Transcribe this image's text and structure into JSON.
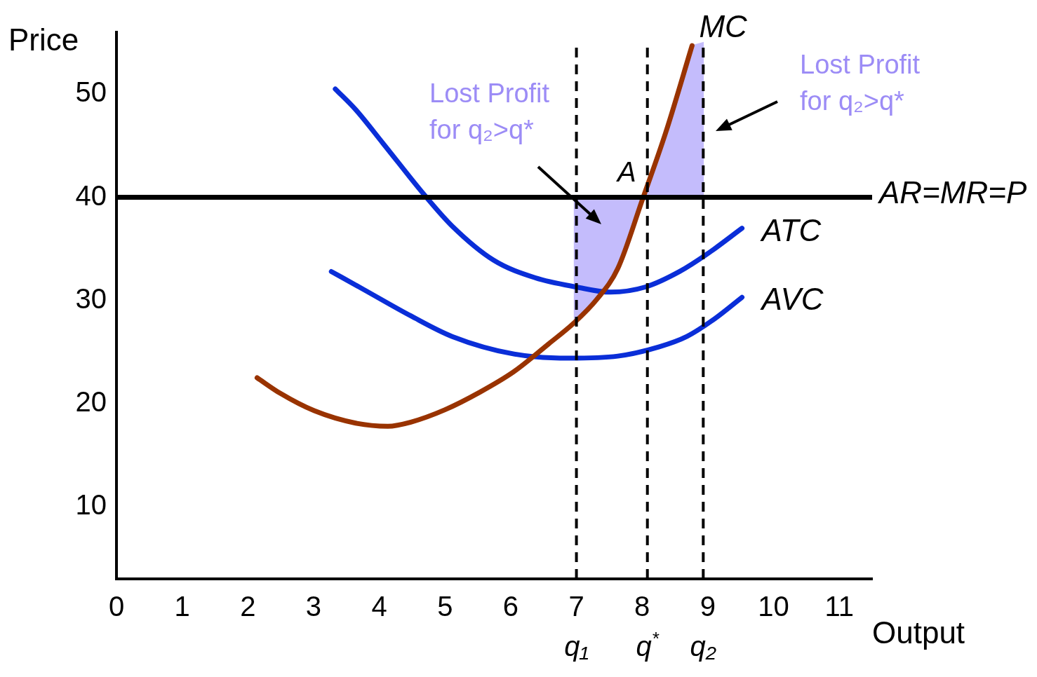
{
  "chart_data": {
    "type": "line",
    "xlabel": "Output",
    "ylabel": "Price",
    "xlim": [
      0,
      11.5
    ],
    "ylim": [
      3,
      56
    ],
    "xticks": [
      0,
      1,
      2,
      3,
      4,
      5,
      6,
      7,
      8,
      9,
      10,
      11
    ],
    "yticks": [
      10,
      20,
      30,
      40,
      50
    ],
    "grid": false,
    "legend": false,
    "marker": "none",
    "line_style": "solid",
    "series": [
      {
        "type": "area",
        "color": "#c4bcfc",
        "x": [
          6.96,
          7.31,
          7.63,
          8.0,
          6.96
        ],
        "values": [
          27.8,
          30.1,
          33.1,
          39.7,
          40
        ]
      },
      {
        "type": "area",
        "color": "#c4bcfc",
        "x": [
          8.0,
          8.36,
          8.76,
          8.93,
          8.93
        ],
        "values": [
          39.7,
          46.3,
          54.7,
          55,
          40
        ]
      },
      {
        "name": "MC",
        "color": "#993300",
        "x": [
          2.14,
          2.49,
          3.01,
          3.64,
          4.13,
          4.48,
          5.0,
          5.53,
          6.05,
          6.58,
          6.96,
          7.31,
          7.63,
          8.0,
          8.36,
          8.76
        ],
        "values": [
          22.5,
          21.0,
          19.3,
          18.1,
          17.8,
          18.2,
          19.4,
          21.1,
          23.1,
          25.8,
          27.8,
          30.1,
          33.1,
          39.7,
          46.3,
          54.7
        ]
      },
      {
        "name": "ATC",
        "color": "#0a2ed8",
        "x": [
          3.33,
          3.64,
          4.06,
          4.69,
          5.11,
          5.74,
          6.37,
          7.0,
          7.52,
          8.05,
          8.57,
          8.99,
          9.52
        ],
        "values": [
          50.5,
          48.5,
          45.2,
          40.2,
          37.2,
          33.9,
          32.2,
          31.3,
          30.8,
          31.3,
          32.8,
          34.5,
          37.0
        ]
      },
      {
        "name": "AVC",
        "color": "#0a2ed8",
        "x": [
          3.27,
          3.75,
          4.48,
          5.11,
          6.05,
          6.89,
          7.63,
          8.26,
          8.68,
          9.1,
          9.52
        ],
        "values": [
          32.8,
          31.1,
          28.5,
          26.5,
          24.8,
          24.4,
          24.6,
          25.5,
          26.5,
          28.2,
          30.3
        ]
      }
    ],
    "ref_lines": [
      {
        "axis": "y",
        "value": 40,
        "label": "AR=MR=P",
        "color": "#000000",
        "line_style": "solid"
      },
      {
        "axis": "x",
        "value": 7.0,
        "label": "q₁",
        "color": "#000000",
        "line_style": "dashed"
      },
      {
        "axis": "x",
        "value": 8.08,
        "label": "q$^{*}$",
        "color": "#000000",
        "line_style": "dashed"
      },
      {
        "axis": "x",
        "value": 8.93,
        "label": "q₂",
        "color": "#000000",
        "line_style": "dashed"
      }
    ],
    "annotations": [
      {
        "text": "A",
        "x": 8.0,
        "y": 40
      },
      "Lost Profit\nfor q₂>q*",
      "Lost Profit\nfor q₂>q*"
    ]
  }
}
